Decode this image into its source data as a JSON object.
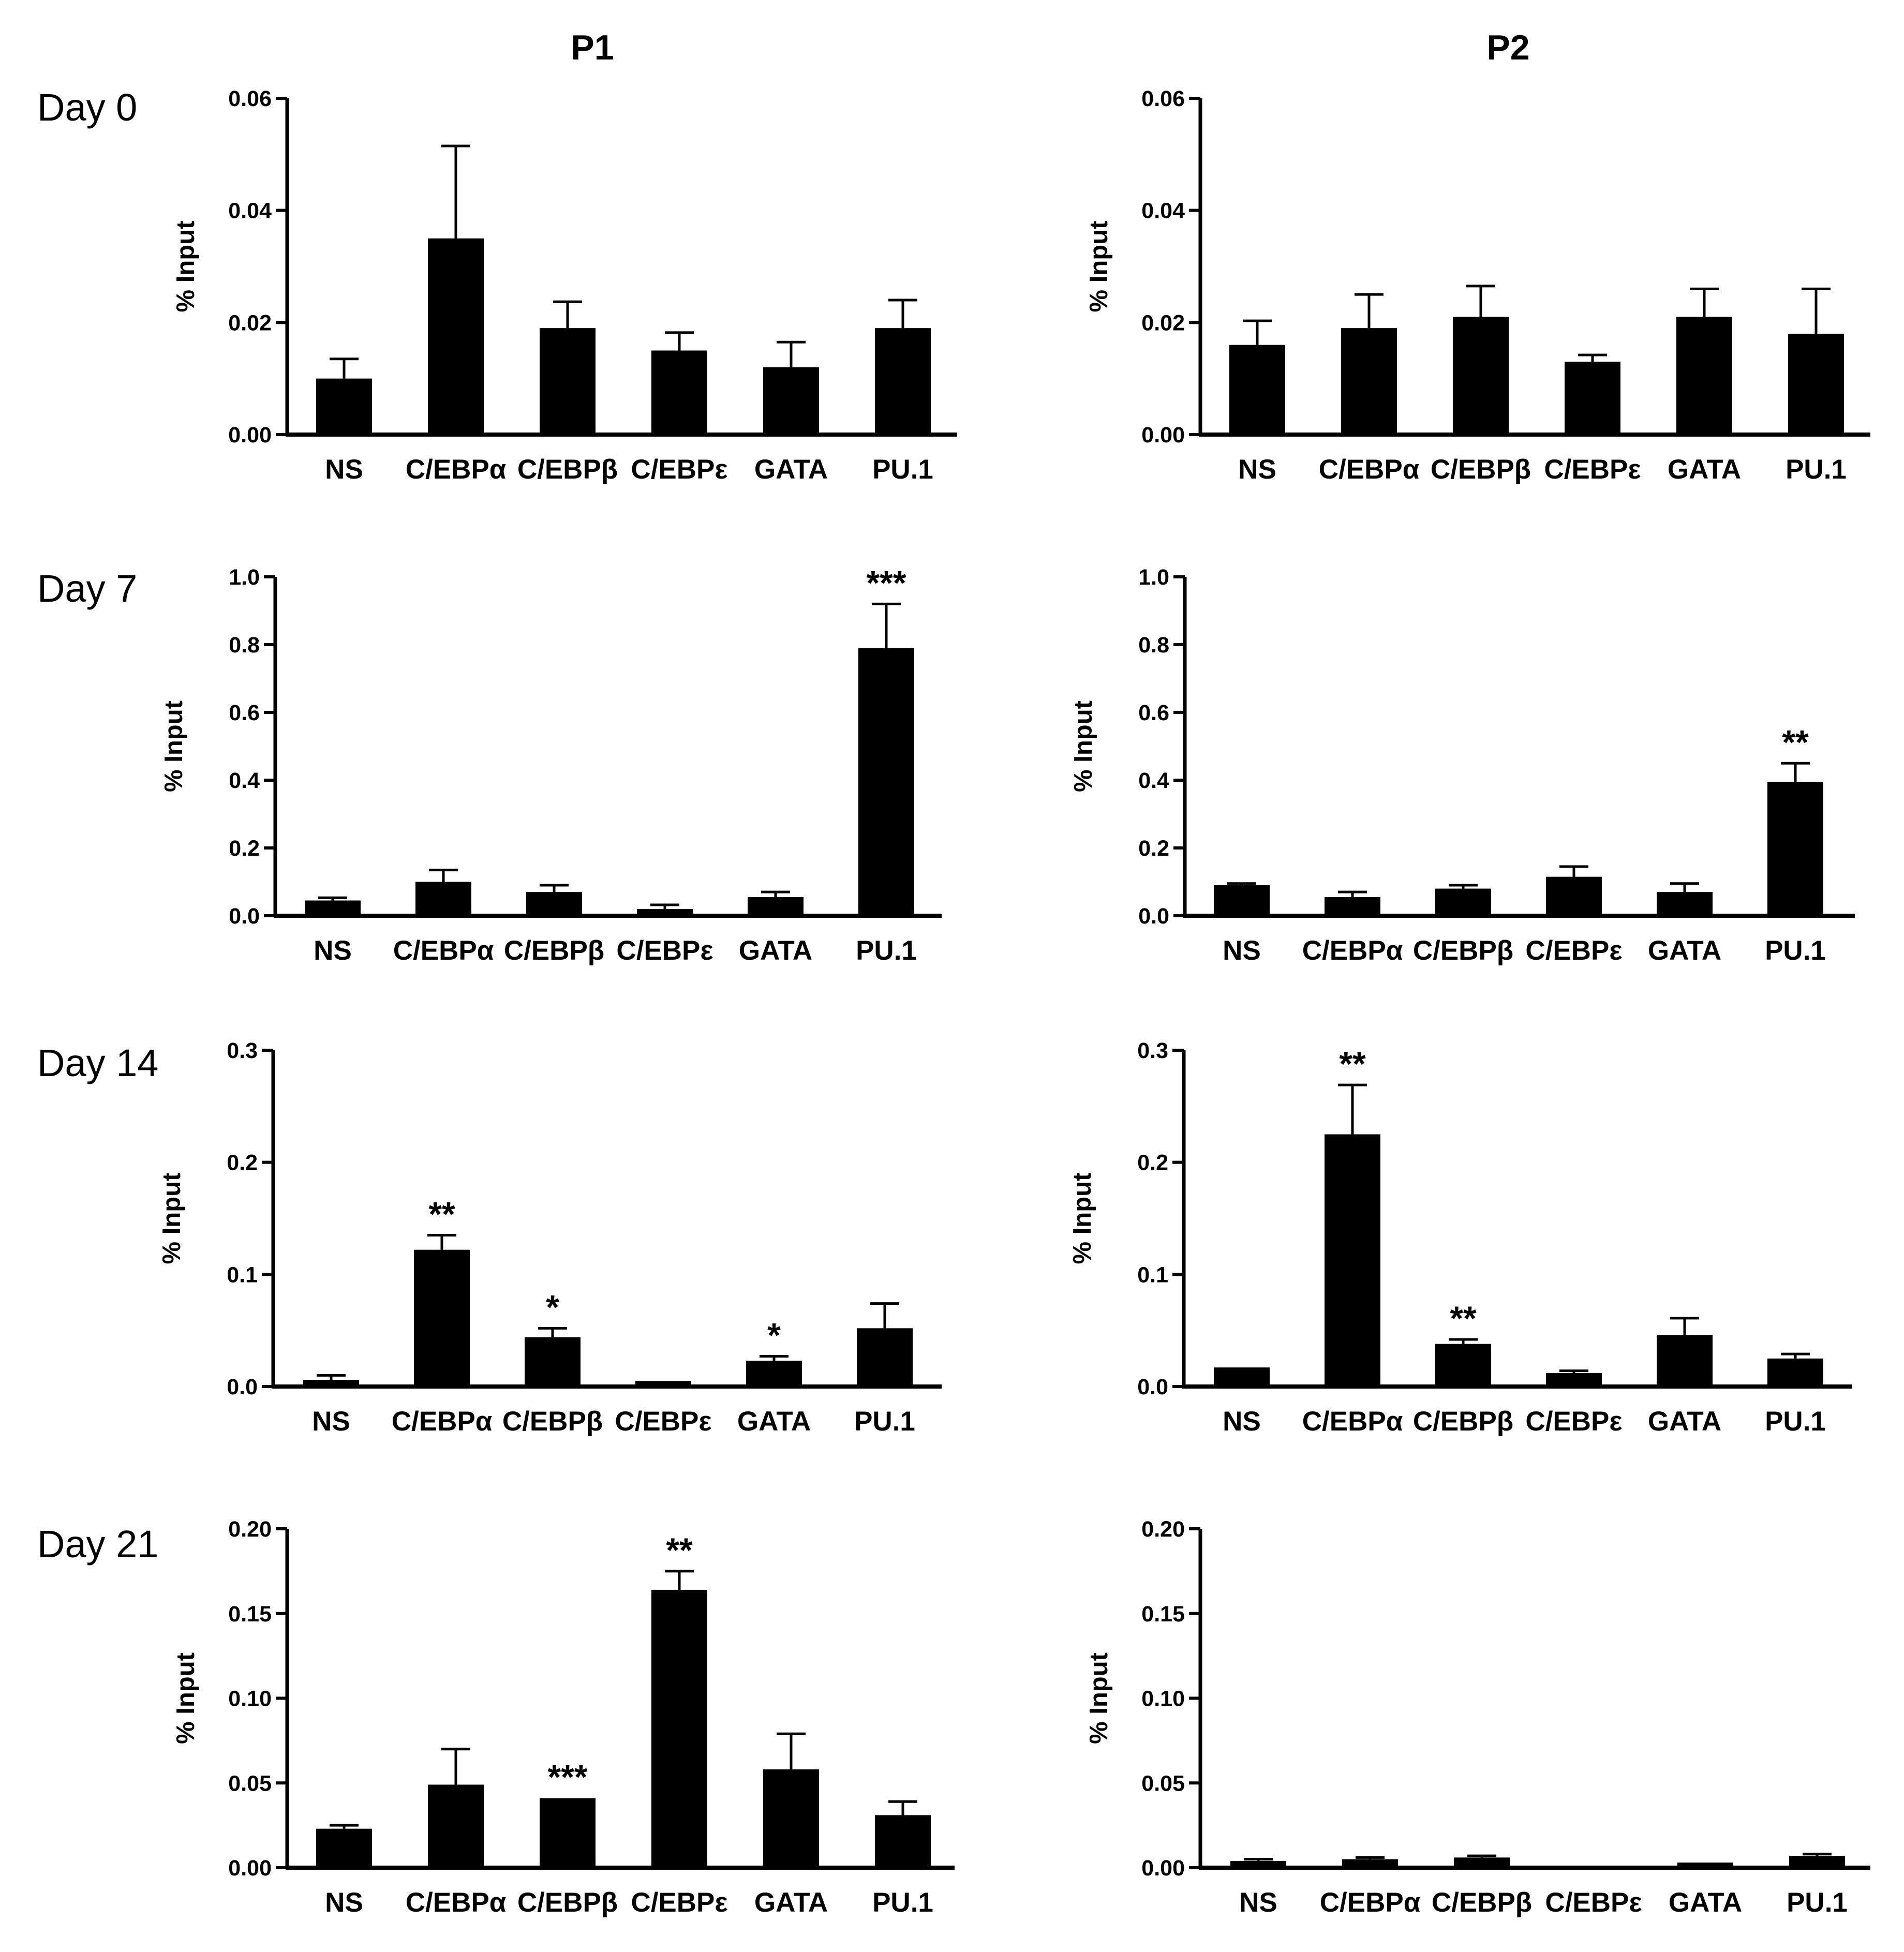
{
  "column_titles": [
    "P1",
    "P2"
  ],
  "row_labels": [
    "Day 0",
    "Day 7",
    "Day 14",
    "Day 21"
  ],
  "colors": {
    "bar": "#000000",
    "axis": "#000000",
    "background": "#ffffff"
  },
  "chart_data": [
    {
      "type": "bar",
      "title": "P1",
      "row": "Day 0",
      "ylabel": "% Input",
      "ylim": [
        0,
        0.06
      ],
      "yticks": [
        "0.00",
        "0.02",
        "0.04",
        "0.06"
      ],
      "categories": [
        "NS",
        "C/EBPα",
        "C/EBPβ",
        "C/EBPε",
        "GATA",
        "PU.1"
      ],
      "values": [
        0.01,
        0.035,
        0.019,
        0.015,
        0.012,
        0.019
      ],
      "errors": [
        0.0035,
        0.0165,
        0.0047,
        0.0032,
        0.0045,
        0.005
      ],
      "significance": [
        "",
        "",
        "",
        "",
        "",
        ""
      ]
    },
    {
      "type": "bar",
      "title": "P2",
      "row": "Day 0",
      "ylabel": "% Input",
      "ylim": [
        0,
        0.06
      ],
      "yticks": [
        "0.00",
        "0.02",
        "0.04",
        "0.06"
      ],
      "categories": [
        "NS",
        "C/EBPα",
        "C/EBPβ",
        "C/EBPε",
        "GATA",
        "PU.1"
      ],
      "values": [
        0.016,
        0.019,
        0.021,
        0.013,
        0.021,
        0.018
      ],
      "errors": [
        0.0043,
        0.006,
        0.0055,
        0.0012,
        0.005,
        0.008
      ],
      "significance": [
        "",
        "",
        "",
        "",
        "",
        ""
      ]
    },
    {
      "type": "bar",
      "title": "P1",
      "row": "Day 7",
      "ylabel": "% Input",
      "ylim": [
        0,
        1.0
      ],
      "yticks": [
        "0.0",
        "0.2",
        "0.4",
        "0.6",
        "0.8",
        "1.0"
      ],
      "categories": [
        "NS",
        "C/EBPα",
        "C/EBPβ",
        "C/EBPε",
        "GATA",
        "PU.1"
      ],
      "values": [
        0.045,
        0.1,
        0.07,
        0.02,
        0.055,
        0.79
      ],
      "errors": [
        0.008,
        0.035,
        0.02,
        0.012,
        0.015,
        0.13
      ],
      "significance": [
        "",
        "",
        "",
        "",
        "",
        "***"
      ]
    },
    {
      "type": "bar",
      "title": "P2",
      "row": "Day 7",
      "ylabel": "% Input",
      "ylim": [
        0,
        1.0
      ],
      "yticks": [
        "0.0",
        "0.2",
        "0.4",
        "0.6",
        "0.8",
        "1.0"
      ],
      "categories": [
        "NS",
        "C/EBPα",
        "C/EBPβ",
        "C/EBPε",
        "GATA",
        "PU.1"
      ],
      "values": [
        0.09,
        0.055,
        0.08,
        0.115,
        0.07,
        0.395
      ],
      "errors": [
        0.005,
        0.015,
        0.01,
        0.03,
        0.025,
        0.055
      ],
      "significance": [
        "",
        "",
        "",
        "",
        "",
        "**"
      ]
    },
    {
      "type": "bar",
      "title": "P1",
      "row": "Day 14",
      "ylabel": "% Input",
      "ylim": [
        0,
        0.3
      ],
      "yticks": [
        "0.0",
        "0.1",
        "0.2",
        "0.3"
      ],
      "categories": [
        "NS",
        "C/EBPα",
        "C/EBPβ",
        "C/EBPε",
        "GATA",
        "PU.1"
      ],
      "values": [
        0.006,
        0.122,
        0.044,
        0.005,
        0.023,
        0.052
      ],
      "errors": [
        0.004,
        0.013,
        0.008,
        0.0,
        0.004,
        0.022
      ],
      "significance": [
        "",
        "**",
        "*",
        "",
        "*",
        ""
      ]
    },
    {
      "type": "bar",
      "title": "P2",
      "row": "Day 14",
      "ylabel": "% Input",
      "ylim": [
        0,
        0.3
      ],
      "yticks": [
        "0.0",
        "0.1",
        "0.2",
        "0.3"
      ],
      "categories": [
        "NS",
        "C/EBPα",
        "C/EBPβ",
        "C/EBPε",
        "GATA",
        "PU.1"
      ],
      "values": [
        0.017,
        0.225,
        0.038,
        0.012,
        0.046,
        0.025
      ],
      "errors": [
        0.0,
        0.044,
        0.004,
        0.002,
        0.015,
        0.004
      ],
      "significance": [
        "",
        "**",
        "**",
        "",
        "",
        ""
      ]
    },
    {
      "type": "bar",
      "title": "P1",
      "row": "Day 21",
      "ylabel": "% Input",
      "ylim": [
        0,
        0.2
      ],
      "yticks": [
        "0.00",
        "0.05",
        "0.10",
        "0.15",
        "0.20"
      ],
      "categories": [
        "NS",
        "C/EBPα",
        "C/EBPβ",
        "C/EBPε",
        "GATA",
        "PU.1"
      ],
      "values": [
        0.023,
        0.049,
        0.041,
        0.164,
        0.058,
        0.031
      ],
      "errors": [
        0.002,
        0.021,
        0.0,
        0.011,
        0.021,
        0.008
      ],
      "significance": [
        "",
        "",
        "***",
        "**",
        "",
        ""
      ]
    },
    {
      "type": "bar",
      "title": "P2",
      "row": "Day 21",
      "ylabel": "% Input",
      "ylim": [
        0,
        0.2
      ],
      "yticks": [
        "0.00",
        "0.05",
        "0.10",
        "0.15",
        "0.20"
      ],
      "categories": [
        "NS",
        "C/EBPα",
        "C/EBPβ",
        "C/EBPε",
        "GATA",
        "PU.1"
      ],
      "values": [
        0.004,
        0.005,
        0.006,
        0.001,
        0.003,
        0.007
      ],
      "errors": [
        0.001,
        0.001,
        0.001,
        0.0,
        0.0,
        0.001
      ],
      "significance": [
        "",
        "",
        "",
        "",
        "",
        ""
      ]
    }
  ]
}
